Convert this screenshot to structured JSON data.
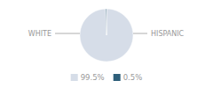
{
  "chart_data": {
    "type": "pie",
    "categories": [
      "WHITE",
      "HISPANIC"
    ],
    "values": [
      99.5,
      0.5
    ],
    "value_labels": [
      "99.5%",
      "0.5%"
    ],
    "colors": [
      "#d6dde8",
      "#2e5f7a"
    ]
  }
}
